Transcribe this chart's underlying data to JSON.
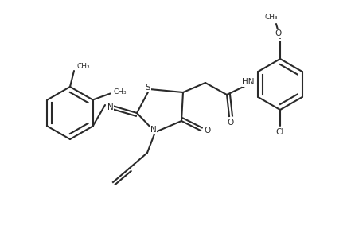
{
  "background_color": "#ffffff",
  "line_color": "#2a2a2a",
  "line_width": 1.5,
  "figsize": [
    4.36,
    2.84
  ],
  "dpi": 100,
  "atoms": {
    "S": "S",
    "N_ring": "N",
    "N_imine": "N",
    "N_amide": "N",
    "O_ketone": "O",
    "O_amide": "O",
    "O_methoxy": "O",
    "Cl": "Cl",
    "CH3_1": "CH₃",
    "CH3_2": "CH₃",
    "CH3_ether": "CH₃"
  }
}
